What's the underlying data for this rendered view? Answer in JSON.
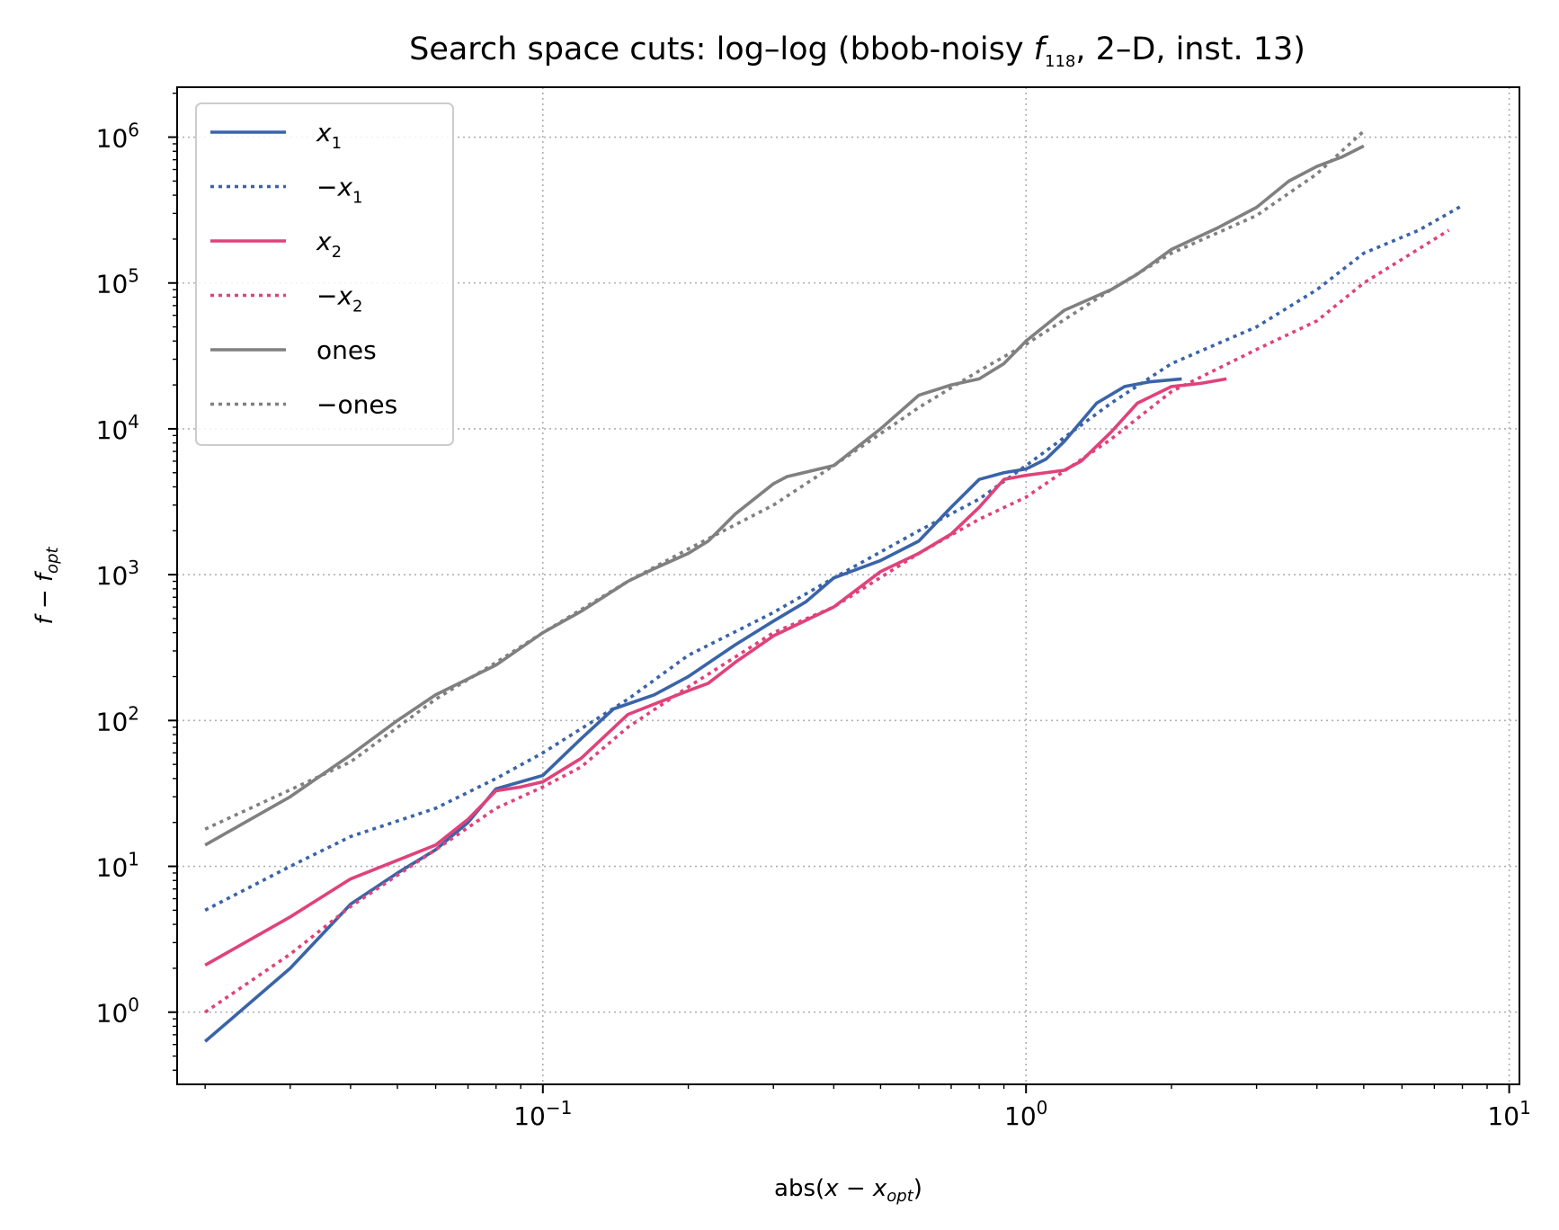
{
  "chart_data": {
    "type": "line",
    "title": {
      "prefix": "Search space cuts: log–log (bbob-noisy ",
      "f": "f",
      "f_sub": "118",
      "suffix": ", 2–D, inst. 13)"
    },
    "xlabel": {
      "prefix": "abs(",
      "var": "x",
      "minus": " − ",
      "var2": "x",
      "sub": "opt",
      "suffix": ")"
    },
    "ylabel": {
      "var": "f",
      "minus": " − ",
      "var2": "f",
      "sub": "opt"
    },
    "x_scale": "log",
    "y_scale": "log",
    "xlim": [
      0.0175,
      10.5
    ],
    "ylim": [
      0.32,
      2200000
    ],
    "grid": true,
    "legend_position": "upper-left",
    "x_ticks": [
      {
        "value": 0.1,
        "base": "10",
        "exp": "−1"
      },
      {
        "value": 1,
        "base": "10",
        "exp": "0"
      },
      {
        "value": 10,
        "base": "10",
        "exp": "1"
      }
    ],
    "y_ticks": [
      {
        "value": 1,
        "base": "10",
        "exp": "0"
      },
      {
        "value": 10,
        "base": "10",
        "exp": "1"
      },
      {
        "value": 100,
        "base": "10",
        "exp": "2"
      },
      {
        "value": 1000,
        "base": "10",
        "exp": "3"
      },
      {
        "value": 10000,
        "base": "10",
        "exp": "4"
      },
      {
        "value": 100000,
        "base": "10",
        "exp": "5"
      },
      {
        "value": 1000000,
        "base": "10",
        "exp": "6"
      }
    ],
    "series": [
      {
        "name": "x",
        "name_prefix": "",
        "name_sub": "1",
        "color": "#3a64a8",
        "dash": "solid",
        "points": [
          [
            0.02,
            0.63
          ],
          [
            0.03,
            2.0
          ],
          [
            0.04,
            5.5
          ],
          [
            0.05,
            9.0
          ],
          [
            0.06,
            13
          ],
          [
            0.07,
            20
          ],
          [
            0.08,
            34
          ],
          [
            0.09,
            38
          ],
          [
            0.1,
            42
          ],
          [
            0.12,
            75
          ],
          [
            0.14,
            120
          ],
          [
            0.17,
            150
          ],
          [
            0.2,
            200
          ],
          [
            0.25,
            330
          ],
          [
            0.3,
            480
          ],
          [
            0.35,
            650
          ],
          [
            0.4,
            950
          ],
          [
            0.5,
            1250
          ],
          [
            0.6,
            1700
          ],
          [
            0.7,
            2900
          ],
          [
            0.8,
            4500
          ],
          [
            0.9,
            5000
          ],
          [
            1.0,
            5300
          ],
          [
            1.1,
            6200
          ],
          [
            1.2,
            8200
          ],
          [
            1.4,
            15000
          ],
          [
            1.6,
            19500
          ],
          [
            1.8,
            21000
          ],
          [
            2.1,
            22000
          ]
        ]
      },
      {
        "name": "x",
        "name_prefix": "−",
        "name_sub": "1",
        "color": "#3a64a8",
        "dash": "dotted",
        "points": [
          [
            0.02,
            5.0
          ],
          [
            0.03,
            10
          ],
          [
            0.04,
            16
          ],
          [
            0.06,
            25
          ],
          [
            0.08,
            40
          ],
          [
            0.1,
            60
          ],
          [
            0.15,
            140
          ],
          [
            0.2,
            280
          ],
          [
            0.3,
            550
          ],
          [
            0.4,
            950
          ],
          [
            0.6,
            2000
          ],
          [
            0.8,
            3300
          ],
          [
            1.0,
            5600
          ],
          [
            1.5,
            15000
          ],
          [
            2,
            28000
          ],
          [
            3,
            50000
          ],
          [
            4,
            90000
          ],
          [
            5,
            160000
          ],
          [
            6.5,
            230000
          ],
          [
            8,
            340000
          ]
        ]
      },
      {
        "name": "x",
        "name_prefix": "",
        "name_sub": "2",
        "color": "#e0427a",
        "dash": "solid",
        "points": [
          [
            0.02,
            2.1
          ],
          [
            0.03,
            4.5
          ],
          [
            0.04,
            8.2
          ],
          [
            0.05,
            11
          ],
          [
            0.06,
            14
          ],
          [
            0.07,
            21
          ],
          [
            0.08,
            33
          ],
          [
            0.09,
            35
          ],
          [
            0.1,
            38
          ],
          [
            0.12,
            55
          ],
          [
            0.15,
            110
          ],
          [
            0.2,
            160
          ],
          [
            0.22,
            180
          ],
          [
            0.25,
            250
          ],
          [
            0.3,
            380
          ],
          [
            0.4,
            600
          ],
          [
            0.5,
            1050
          ],
          [
            0.6,
            1400
          ],
          [
            0.7,
            1900
          ],
          [
            0.8,
            2900
          ],
          [
            0.9,
            4500
          ],
          [
            1.0,
            4800
          ],
          [
            1.2,
            5200
          ],
          [
            1.3,
            6000
          ],
          [
            1.5,
            9500
          ],
          [
            1.7,
            15000
          ],
          [
            2.0,
            19500
          ],
          [
            2.3,
            20500
          ],
          [
            2.6,
            22000
          ]
        ]
      },
      {
        "name": "x",
        "name_prefix": "−",
        "name_sub": "2",
        "color": "#e0427a",
        "dash": "dotted",
        "points": [
          [
            0.02,
            1.0
          ],
          [
            0.03,
            2.5
          ],
          [
            0.04,
            5.3
          ],
          [
            0.06,
            13
          ],
          [
            0.08,
            25
          ],
          [
            0.1,
            35
          ],
          [
            0.12,
            48
          ],
          [
            0.15,
            90
          ],
          [
            0.2,
            170
          ],
          [
            0.3,
            400
          ],
          [
            0.4,
            600
          ],
          [
            0.6,
            1400
          ],
          [
            0.8,
            2400
          ],
          [
            1.0,
            3400
          ],
          [
            1.5,
            8500
          ],
          [
            2,
            18000
          ],
          [
            3,
            35000
          ],
          [
            4,
            55000
          ],
          [
            5,
            100000
          ],
          [
            7.5,
            230000
          ]
        ]
      },
      {
        "name": "ones",
        "name_prefix": "",
        "name_sub": "",
        "color": "#808080",
        "dash": "solid",
        "points": [
          [
            0.02,
            14
          ],
          [
            0.03,
            30
          ],
          [
            0.04,
            58
          ],
          [
            0.05,
            100
          ],
          [
            0.06,
            150
          ],
          [
            0.08,
            240
          ],
          [
            0.1,
            400
          ],
          [
            0.12,
            560
          ],
          [
            0.15,
            900
          ],
          [
            0.17,
            1100
          ],
          [
            0.2,
            1400
          ],
          [
            0.22,
            1700
          ],
          [
            0.25,
            2600
          ],
          [
            0.3,
            4200
          ],
          [
            0.32,
            4700
          ],
          [
            0.4,
            5600
          ],
          [
            0.5,
            10000
          ],
          [
            0.6,
            17000
          ],
          [
            0.7,
            20000
          ],
          [
            0.8,
            22000
          ],
          [
            0.9,
            28000
          ],
          [
            1.0,
            40000
          ],
          [
            1.2,
            65000
          ],
          [
            1.5,
            90000
          ],
          [
            1.7,
            115000
          ],
          [
            2,
            170000
          ],
          [
            2.5,
            240000
          ],
          [
            3,
            330000
          ],
          [
            3.5,
            500000
          ],
          [
            4,
            630000
          ],
          [
            4.5,
            730000
          ],
          [
            5.0,
            870000
          ]
        ]
      },
      {
        "name": "ones",
        "name_prefix": "−",
        "name_sub": "",
        "color": "#808080",
        "dash": "dotted",
        "points": [
          [
            0.02,
            18
          ],
          [
            0.04,
            52
          ],
          [
            0.06,
            140
          ],
          [
            0.08,
            250
          ],
          [
            0.1,
            400
          ],
          [
            0.15,
            900
          ],
          [
            0.2,
            1500
          ],
          [
            0.3,
            3000
          ],
          [
            0.4,
            5600
          ],
          [
            0.6,
            14000
          ],
          [
            0.8,
            25000
          ],
          [
            1.0,
            38000
          ],
          [
            1.5,
            90000
          ],
          [
            2,
            160000
          ],
          [
            3,
            290000
          ],
          [
            4,
            560000
          ],
          [
            5,
            1100000
          ]
        ]
      }
    ]
  }
}
